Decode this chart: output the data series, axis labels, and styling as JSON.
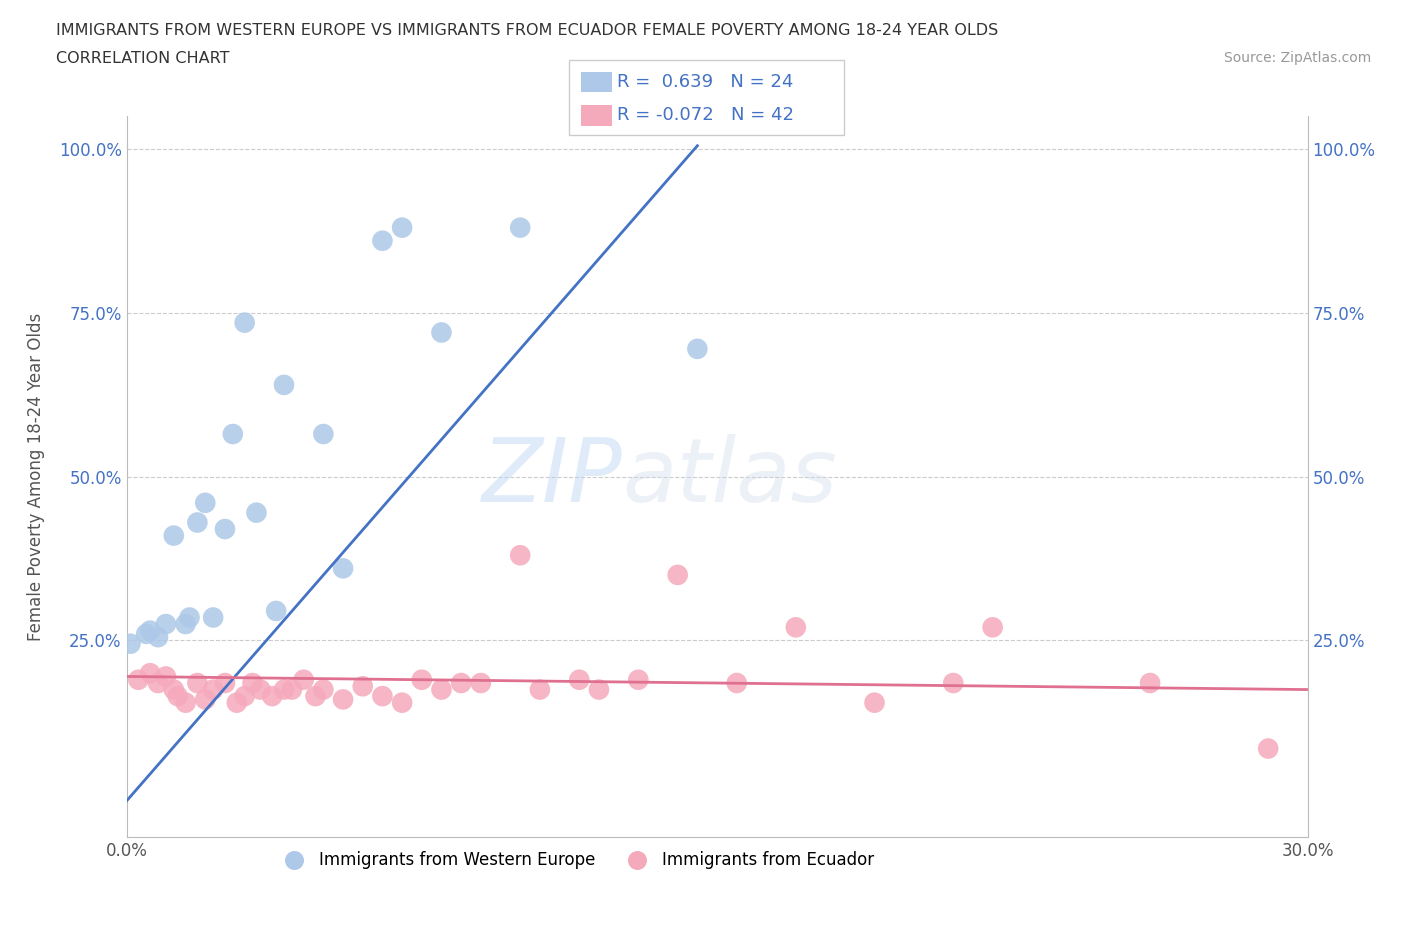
{
  "title_line1": "IMMIGRANTS FROM WESTERN EUROPE VS IMMIGRANTS FROM ECUADOR FEMALE POVERTY AMONG 18-24 YEAR OLDS",
  "title_line2": "CORRELATION CHART",
  "source": "Source: ZipAtlas.com",
  "ylabel": "Female Poverty Among 18-24 Year Olds",
  "xmin": 0.0,
  "xmax": 0.3,
  "ymin": -0.05,
  "ymax": 1.05,
  "blue_R": "0.639",
  "blue_N": "24",
  "pink_R": "-0.072",
  "pink_N": "42",
  "blue_color": "#adc8e8",
  "pink_color": "#f5aabc",
  "blue_line_color": "#4472c4",
  "pink_line_color": "#e07090",
  "tick_color": "#4472c4",
  "watermark_zip": "ZIP",
  "watermark_atlas": "atlas",
  "blue_scatter_x": [
    0.001,
    0.005,
    0.006,
    0.008,
    0.01,
    0.012,
    0.015,
    0.016,
    0.018,
    0.02,
    0.022,
    0.025,
    0.027,
    0.03,
    0.033,
    0.038,
    0.04,
    0.05,
    0.055,
    0.065,
    0.07,
    0.08,
    0.1,
    0.145
  ],
  "blue_scatter_y": [
    0.245,
    0.26,
    0.265,
    0.255,
    0.275,
    0.41,
    0.275,
    0.285,
    0.43,
    0.46,
    0.285,
    0.42,
    0.565,
    0.735,
    0.445,
    0.295,
    0.64,
    0.565,
    0.36,
    0.86,
    0.88,
    0.72,
    0.88,
    0.695
  ],
  "pink_scatter_x": [
    0.003,
    0.006,
    0.008,
    0.01,
    0.012,
    0.013,
    0.015,
    0.018,
    0.02,
    0.022,
    0.025,
    0.028,
    0.03,
    0.032,
    0.034,
    0.037,
    0.04,
    0.042,
    0.045,
    0.048,
    0.05,
    0.055,
    0.06,
    0.065,
    0.07,
    0.075,
    0.08,
    0.085,
    0.09,
    0.1,
    0.105,
    0.115,
    0.12,
    0.13,
    0.14,
    0.155,
    0.17,
    0.19,
    0.21,
    0.22,
    0.26,
    0.29
  ],
  "pink_scatter_y": [
    0.19,
    0.2,
    0.185,
    0.195,
    0.175,
    0.165,
    0.155,
    0.185,
    0.16,
    0.175,
    0.185,
    0.155,
    0.165,
    0.185,
    0.175,
    0.165,
    0.175,
    0.175,
    0.19,
    0.165,
    0.175,
    0.16,
    0.18,
    0.165,
    0.155,
    0.19,
    0.175,
    0.185,
    0.185,
    0.38,
    0.175,
    0.19,
    0.175,
    0.19,
    0.35,
    0.185,
    0.27,
    0.155,
    0.185,
    0.27,
    0.185,
    0.085
  ],
  "blue_line_x0": 0.0,
  "blue_line_x1": 0.145,
  "blue_line_y0": 0.005,
  "blue_line_y1": 1.005,
  "pink_line_x0": 0.0,
  "pink_line_x1": 0.3,
  "pink_line_y0": 0.195,
  "pink_line_y1": 0.175
}
